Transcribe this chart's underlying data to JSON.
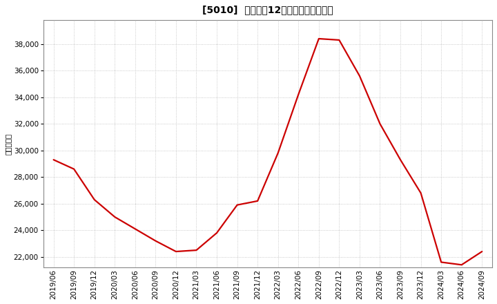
{
  "title": "[5010]  売上高の12か月移動合計の推移",
  "ylabel": "（百万円）",
  "line_color": "#cc0000",
  "background_color": "#ffffff",
  "grid_color": "#bbbbbb",
  "dates": [
    "2019/06",
    "2019/09",
    "2019/12",
    "2020/03",
    "2020/06",
    "2020/09",
    "2020/12",
    "2021/03",
    "2021/06",
    "2021/09",
    "2021/12",
    "2022/03",
    "2022/06",
    "2022/09",
    "2022/12",
    "2023/03",
    "2023/06",
    "2023/09",
    "2023/12",
    "2024/03",
    "2024/06",
    "2024/09"
  ],
  "values": [
    29300,
    28600,
    26300,
    25000,
    24100,
    23200,
    22400,
    22500,
    23800,
    25900,
    26200,
    29800,
    34200,
    38400,
    38300,
    35600,
    32000,
    29300,
    26800,
    21600,
    21400,
    22400
  ],
  "yticks": [
    22000,
    24000,
    26000,
    28000,
    30000,
    32000,
    34000,
    36000,
    38000
  ],
  "ylim": [
    21200,
    39800
  ],
  "title_fontsize": 10,
  "ylabel_fontsize": 7.5,
  "tick_fontsize": 7.5,
  "linewidth": 1.6
}
